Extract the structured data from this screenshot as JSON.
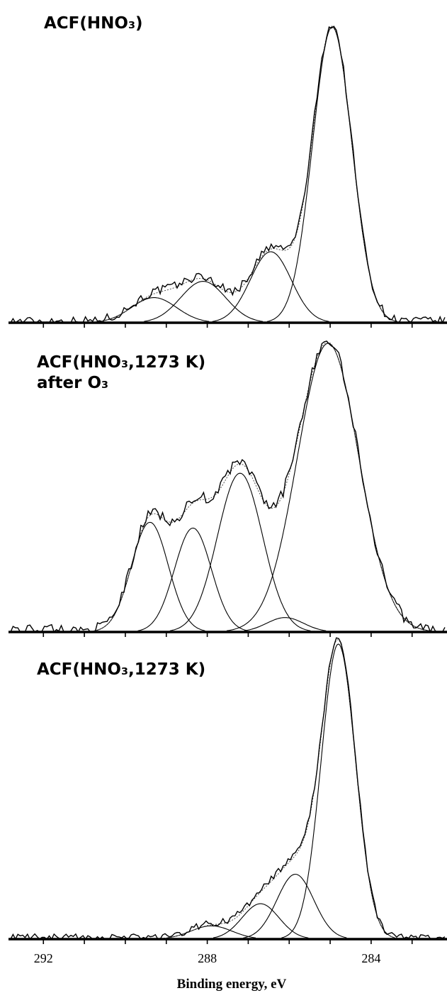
{
  "chart_data": [
    {
      "type": "line",
      "panel": "top",
      "title": "ACF(HNO₃)",
      "title_line2": "",
      "x_reversed": true,
      "xlim": [
        292.8,
        282.2
      ],
      "x_ticks": [
        292,
        291,
        290,
        289,
        288,
        287,
        286,
        285,
        284,
        283
      ],
      "ylim": [
        0,
        1.0
      ],
      "series": [
        {
          "values_kind": "gaussian",
          "center": 284.95,
          "height": 1.0,
          "sigma": 0.48
        },
        {
          "values_kind": "gaussian",
          "center": 286.45,
          "height": 0.24,
          "sigma": 0.5
        },
        {
          "values_kind": "gaussian",
          "center": 288.1,
          "height": 0.14,
          "sigma": 0.55
        },
        {
          "values_kind": "gaussian",
          "center": 289.3,
          "height": 0.085,
          "sigma": 0.55
        }
      ],
      "envelope": "sum",
      "measured": "noisy-sum",
      "noise_amplitude": 0.015
    },
    {
      "type": "line",
      "panel": "middle",
      "title": "ACF(HNO₃,1273 K)",
      "title_line2": "after O₃",
      "x_reversed": true,
      "xlim": [
        292.8,
        282.2
      ],
      "x_ticks": [
        292,
        291,
        290,
        289,
        288,
        287,
        286,
        285,
        284,
        283
      ],
      "ylim": [
        0,
        1.0
      ],
      "series": [
        {
          "values_kind": "gaussian",
          "center": 285.05,
          "height": 1.0,
          "sigma": 0.75
        },
        {
          "values_kind": "gaussian",
          "center": 286.1,
          "height": 0.05,
          "sigma": 0.45
        },
        {
          "values_kind": "gaussian",
          "center": 287.2,
          "height": 0.55,
          "sigma": 0.55
        },
        {
          "values_kind": "gaussian",
          "center": 288.35,
          "height": 0.36,
          "sigma": 0.45
        },
        {
          "values_kind": "gaussian",
          "center": 289.4,
          "height": 0.38,
          "sigma": 0.45
        }
      ],
      "envelope": "sum",
      "measured": "noisy-sum",
      "noise_amplitude": 0.02
    },
    {
      "type": "line",
      "panel": "bottom",
      "title": "ACF(HNO₃,1273 K)",
      "title_line2": "",
      "x_reversed": true,
      "xlim": [
        292.8,
        282.2
      ],
      "x_ticks": [
        292,
        291,
        290,
        289,
        288,
        287,
        286,
        285,
        284,
        283
      ],
      "x_tick_labels": [
        {
          "value": 292,
          "label": "292"
        },
        {
          "value": 288,
          "label": "288"
        },
        {
          "value": 284,
          "label": "284"
        }
      ],
      "xlabel": "Binding energy, eV",
      "ylim": [
        0,
        1.0
      ],
      "series": [
        {
          "values_kind": "gaussian",
          "center": 284.8,
          "height": 1.0,
          "sigma": 0.42
        },
        {
          "values_kind": "gaussian",
          "center": 285.85,
          "height": 0.22,
          "sigma": 0.45
        },
        {
          "values_kind": "gaussian",
          "center": 286.7,
          "height": 0.12,
          "sigma": 0.45
        },
        {
          "values_kind": "gaussian",
          "center": 287.9,
          "height": 0.045,
          "sigma": 0.5
        }
      ],
      "envelope": "sum",
      "measured": "noisy-sum",
      "noise_amplitude": 0.012
    }
  ]
}
